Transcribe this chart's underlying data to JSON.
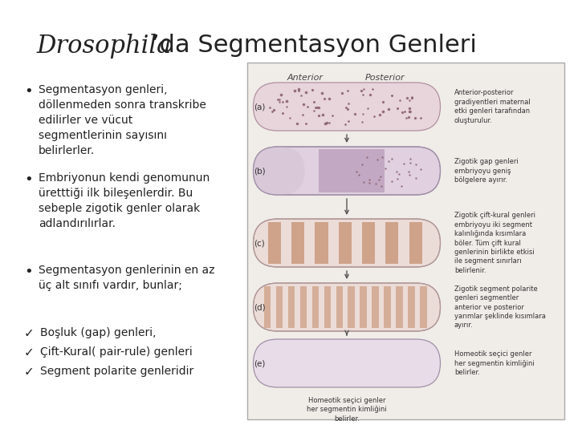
{
  "title_italic": "Drosophila",
  "title_apostrophe_normal": "’da Segmentasyon Genleri",
  "background_color": "#ffffff",
  "text_color": "#222222",
  "title_fontsize": 22,
  "body_fontsize": 11,
  "bullets": [
    "Segmentasyon genleri,\ndöllenmeden sonra transkribe\nedilirler ve vücut\nsegmentlerinin sayısını\nbelirlerler.",
    "Embriyonun kendi genomunun\nüretttiği ilk bileşenlerdir. Bu\nsebeple zigotik genler olarak\nadlandırılırlar.",
    "Segmentasyon genlerinin en az\nüç alt sınıfı vardır, bunlar;"
  ],
  "checkmarks": [
    "Boşluk (gap) genleri,",
    "Çift-Kural( pair-rule) genleri",
    "Segment polarite genleridir"
  ],
  "diagram_bg": "#f0ece8",
  "diagram_border": "#aaaaaa",
  "embryo_base_color": "#e8d5dc",
  "embryo_edge_color": "#b0909a",
  "dot_color": "#8a6070",
  "stripe_color": "#c49070",
  "ann_texts": [
    "Anterior-posterior\ngradiyentleri maternal\netki genleri tarafından\noluşturulur.",
    "Zigotik gap genleri\nembriyoyu geniş\nbölgelere ayırır.",
    "Zigotik çift-kural genleri\nembriyoyu iki segment\nkalınlığında kısımlara\nböler. Tüm çift kural\ngenlerinin birlikte etkisi\nile segment sınırları\nbelirlenir.",
    "Zigotik segment polarite\ngenleri segmentler\nanterior ve posterior\nyarımlar şeklinde kısımlara\nayırır.",
    "Homeotik seçici genler\nher segmentin kimliğini\nbelirler."
  ]
}
